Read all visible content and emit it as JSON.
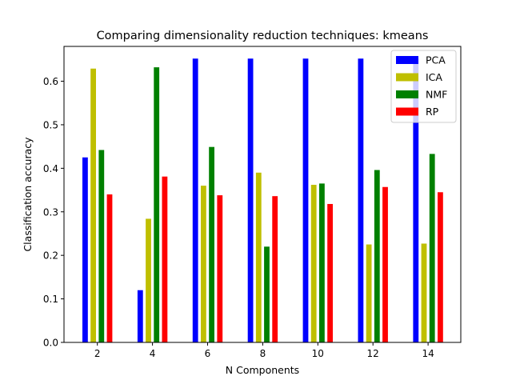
{
  "chart_data": {
    "type": "bar",
    "title": "Comparing dimensionality reduction techniques: kmeans",
    "xlabel": "N Components",
    "ylabel": "Classification accuracy",
    "categories": [
      "2",
      "4",
      "6",
      "8",
      "10",
      "12",
      "14"
    ],
    "ylim": [
      0,
      0.68
    ],
    "yticks": [
      "0.0",
      "0.1",
      "0.2",
      "0.3",
      "0.4",
      "0.5",
      "0.6"
    ],
    "grid": false,
    "legend_position": "top-right",
    "series": [
      {
        "name": "PCA",
        "color": "#0000ff",
        "values": [
          0.425,
          0.12,
          0.652,
          0.652,
          0.652,
          0.652,
          0.652
        ]
      },
      {
        "name": "ICA",
        "color": "#bfbf00",
        "values": [
          0.629,
          0.284,
          0.36,
          0.39,
          0.362,
          0.225,
          0.227
        ]
      },
      {
        "name": "NMF",
        "color": "#008000",
        "values": [
          0.442,
          0.632,
          0.449,
          0.22,
          0.365,
          0.396,
          0.433
        ]
      },
      {
        "name": "RP",
        "color": "#ff0000",
        "values": [
          0.34,
          0.381,
          0.338,
          0.336,
          0.318,
          0.357,
          0.345
        ]
      }
    ]
  }
}
